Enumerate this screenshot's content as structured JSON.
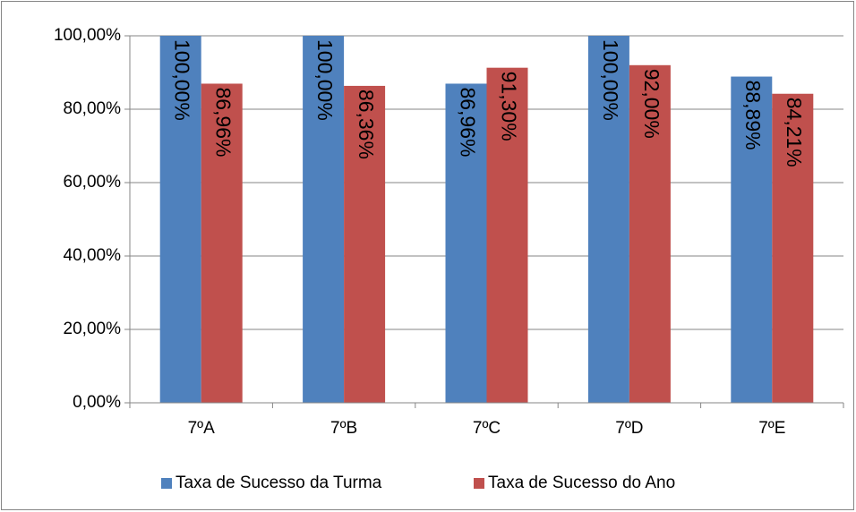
{
  "chart_data": {
    "type": "bar",
    "categories": [
      "7ºA",
      "7ºB",
      "7ºC",
      "7ºD",
      "7ºE"
    ],
    "series": [
      {
        "name": "Taxa de Sucesso da Turma",
        "color": "#4f81bd",
        "values": [
          100,
          100,
          86.96,
          100,
          88.89
        ],
        "value_labels": [
          "100,00%",
          "100,00%",
          "86,96%",
          "100,00%",
          "88,89%"
        ]
      },
      {
        "name": "Taxa de Sucesso do Ano",
        "color": "#c0504d",
        "values": [
          86.96,
          86.36,
          91.3,
          92,
          84.21
        ],
        "value_labels": [
          "86,96%",
          "86,36%",
          "91,30%",
          "92,00%",
          "84,21%"
        ]
      }
    ],
    "ylim": [
      0,
      100
    ],
    "yticks": [
      {
        "value": 0,
        "label": "0,00%"
      },
      {
        "value": 20,
        "label": "20,00%"
      },
      {
        "value": 40,
        "label": "40,00%"
      },
      {
        "value": 60,
        "label": "60,00%"
      },
      {
        "value": 80,
        "label": "80,00%"
      },
      {
        "value": 100,
        "label": "100,00%"
      }
    ],
    "grid": true,
    "legend": "bottom"
  }
}
